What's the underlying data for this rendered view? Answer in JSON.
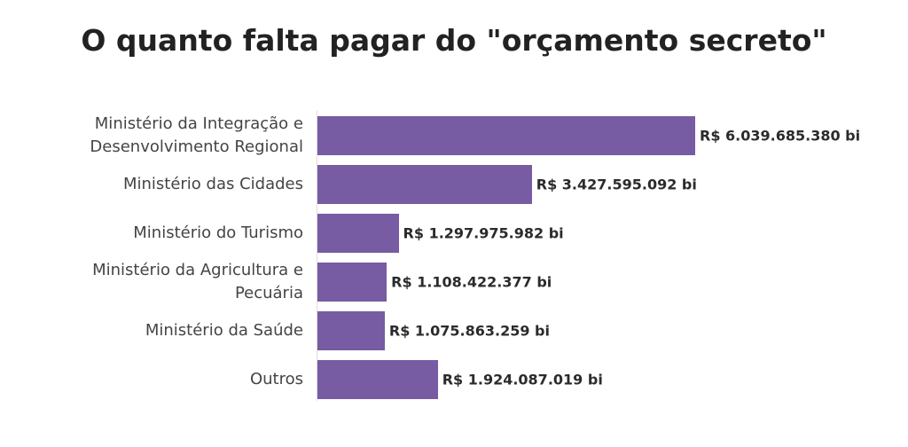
{
  "chart_data": {
    "type": "bar",
    "orientation": "horizontal",
    "title": "O quanto falta pagar do \"orçamento secreto\"",
    "categories": [
      "Ministério da Integração e Desenvolvimento Regional",
      "Ministério das Cidades",
      "Ministério do Turismo",
      "Ministério da Agricultura e Pecuária",
      "Ministério da Saúde",
      "Outros"
    ],
    "values": [
      6039685380,
      3427595092,
      1297975982,
      1108422377,
      1075863259,
      1924087019
    ],
    "value_labels": [
      "R$ 6.039.685.380 bi",
      "R$ 3.427.595.092 bi",
      "R$ 1.297.975.982 bi",
      "R$ 1.108.422.377 bi",
      "R$ 1.075.863.259 bi",
      "R$ 1.924.087.019 bi"
    ],
    "color": "#775ba3"
  }
}
